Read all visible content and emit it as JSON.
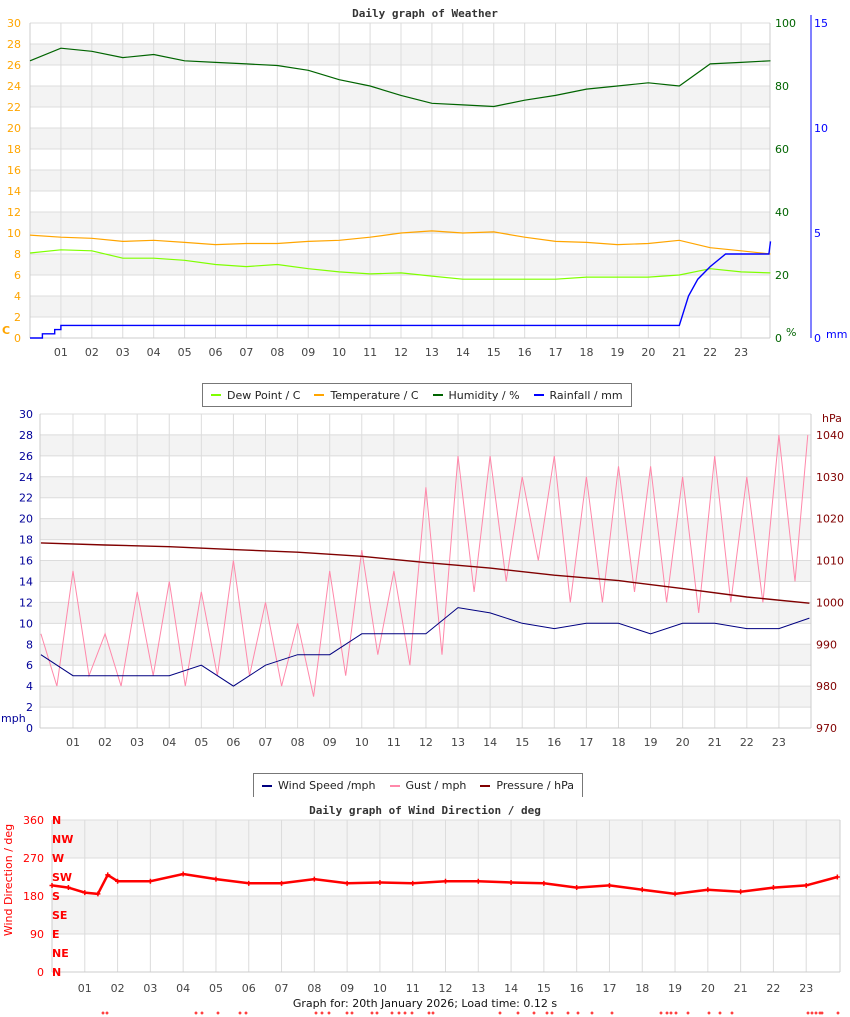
{
  "footer": "Graph for: 20th January 2026; Load time: 0.12 s",
  "chart_data": [
    {
      "type": "line",
      "title": "Daily graph of Weather",
      "x_range_hours": [
        0,
        24
      ],
      "x_ticks": [
        "01",
        "02",
        "03",
        "04",
        "05",
        "06",
        "07",
        "08",
        "09",
        "10",
        "11",
        "12",
        "13",
        "14",
        "15",
        "16",
        "17",
        "18",
        "19",
        "20",
        "21",
        "22",
        "23"
      ],
      "grid": true,
      "legend_placement": "bottom",
      "axes": {
        "left": {
          "unit": "C",
          "range": [
            0,
            30
          ],
          "ticks": [
            "0",
            "2",
            "4",
            "6",
            "8",
            "10",
            "12",
            "14",
            "16",
            "18",
            "20",
            "22",
            "24",
            "26",
            "28",
            "30"
          ],
          "color": "#ffa500"
        },
        "humidity": {
          "unit": "%",
          "range": [
            0,
            100
          ],
          "ticks": [
            "0",
            "20",
            "40",
            "60",
            "80",
            "100"
          ],
          "color": "#006400"
        },
        "rain": {
          "unit": "mm",
          "range": [
            0,
            15
          ],
          "ticks": [
            "0",
            "5",
            "10",
            "15"
          ],
          "color": "#0000ff"
        }
      },
      "series": [
        {
          "name": "Dew Point / C",
          "axis": "left",
          "color": "#7fff00",
          "x": [
            0,
            1,
            2,
            3,
            4,
            5,
            6,
            7,
            8,
            9,
            10,
            11,
            12,
            13,
            14,
            15,
            16,
            17,
            18,
            19,
            20,
            21,
            22,
            23,
            23.95
          ],
          "y": [
            8.1,
            8.4,
            8.3,
            7.6,
            7.6,
            7.4,
            7.0,
            6.8,
            7.0,
            6.6,
            6.3,
            6.1,
            6.2,
            5.9,
            5.6,
            5.6,
            5.6,
            5.6,
            5.8,
            5.8,
            5.8,
            6.0,
            6.6,
            6.3,
            6.2
          ]
        },
        {
          "name": "Temperature / C",
          "axis": "left",
          "color": "#ffa500",
          "x": [
            0,
            1,
            2,
            3,
            4,
            5,
            6,
            7,
            8,
            9,
            10,
            11,
            12,
            13,
            14,
            15,
            16,
            17,
            18,
            19,
            20,
            21,
            22,
            23,
            23.95
          ],
          "y": [
            9.8,
            9.6,
            9.5,
            9.2,
            9.3,
            9.1,
            8.9,
            9.0,
            9.0,
            9.2,
            9.3,
            9.6,
            10.0,
            10.2,
            10.0,
            10.1,
            9.6,
            9.2,
            9.1,
            8.9,
            9.0,
            9.3,
            8.6,
            8.3,
            8.0
          ]
        },
        {
          "name": "Humidity / %",
          "axis": "humidity",
          "color": "#006400",
          "x": [
            0,
            1,
            2,
            3,
            4,
            5,
            6,
            7,
            8,
            9,
            10,
            11,
            12,
            13,
            14,
            15,
            16,
            17,
            18,
            19,
            20,
            21,
            22,
            23,
            23.95
          ],
          "y": [
            88,
            92,
            91,
            89,
            90,
            88,
            87.5,
            87,
            86.5,
            85,
            82,
            80,
            77,
            74.5,
            74,
            73.5,
            75.5,
            77,
            79,
            80,
            81,
            80,
            87,
            87.5,
            88
          ]
        },
        {
          "name": "Rainfall / mm",
          "axis": "rain",
          "color": "#0000ff",
          "x": [
            0,
            0.4,
            0.4,
            0.8,
            0.8,
            1.0,
            1.0,
            21.0,
            21.3,
            21.6,
            22.0,
            22.5,
            23.9,
            23.95
          ],
          "y": [
            0,
            0,
            0.2,
            0.2,
            0.4,
            0.4,
            0.6,
            0.6,
            2.0,
            2.8,
            3.4,
            4.0,
            4.0,
            4.6
          ]
        }
      ]
    },
    {
      "type": "line",
      "title": "",
      "x_range_hours": [
        0,
        24
      ],
      "x_ticks": [
        "01",
        "02",
        "03",
        "04",
        "05",
        "06",
        "07",
        "08",
        "09",
        "10",
        "11",
        "12",
        "13",
        "14",
        "15",
        "16",
        "17",
        "18",
        "19",
        "20",
        "21",
        "22",
        "23"
      ],
      "grid": true,
      "legend_placement": "bottom",
      "axes": {
        "left": {
          "unit": "mph",
          "range": [
            0,
            30
          ],
          "ticks": [
            "0",
            "2",
            "4",
            "6",
            "8",
            "10",
            "12",
            "14",
            "16",
            "18",
            "20",
            "22",
            "24",
            "26",
            "28",
            "30"
          ],
          "color": "#000099"
        },
        "pressure": {
          "unit": "hPa",
          "range": [
            970,
            1045
          ],
          "ticks": [
            "970",
            "980",
            "990",
            "1000",
            "1010",
            "1020",
            "1030",
            "1040"
          ],
          "color": "#800000"
        }
      },
      "series": [
        {
          "name": "Wind Speed /mph",
          "axis": "left",
          "color": "#000080",
          "x": [
            0,
            1,
            2,
            3,
            4,
            5,
            6,
            7,
            8,
            9,
            10,
            11,
            12,
            13,
            14,
            15,
            16,
            17,
            18,
            19,
            20,
            21,
            22,
            23,
            23.95
          ],
          "y": [
            7,
            5,
            5,
            5,
            5,
            6,
            4,
            6,
            7,
            7,
            9,
            9,
            9,
            11.5,
            11,
            10,
            9.5,
            10,
            10,
            9,
            10,
            10,
            9.5,
            9.5,
            10.5
          ]
        },
        {
          "name": "Gust / mph",
          "axis": "left",
          "color": "#ff88aa",
          "x": [
            0,
            0.5,
            1,
            1.5,
            2,
            2.5,
            3,
            3.5,
            4,
            4.5,
            5,
            5.5,
            6,
            6.5,
            7,
            7.5,
            8,
            8.5,
            9,
            9.5,
            10,
            10.5,
            11,
            11.5,
            12,
            12.5,
            13,
            13.5,
            14,
            14.5,
            15,
            15.5,
            16,
            16.5,
            17,
            17.5,
            18,
            18.5,
            19,
            19.5,
            20,
            20.5,
            21,
            21.5,
            22,
            22.5,
            23,
            23.5,
            23.9
          ],
          "y": [
            9,
            4,
            15,
            5,
            9,
            4,
            13,
            5,
            14,
            4,
            13,
            5,
            16,
            5,
            12,
            4,
            10,
            3,
            15,
            5,
            17,
            7,
            15,
            6,
            23,
            7,
            26,
            13,
            26,
            14,
            24,
            16,
            26,
            12,
            24,
            12,
            25,
            13,
            25,
            12,
            24,
            11,
            26,
            12,
            24,
            12,
            28,
            14,
            28
          ]
        },
        {
          "name": "Pressure / hPa",
          "axis": "pressure",
          "color": "#800000",
          "x": [
            0,
            2,
            4,
            6,
            8,
            10,
            12,
            14,
            16,
            18,
            20,
            22,
            23.95
          ],
          "y": [
            1014.2,
            1013.7,
            1013.3,
            1012.6,
            1012,
            1011,
            1009.5,
            1008.2,
            1006.5,
            1005.2,
            1003.3,
            1001.3,
            999.8
          ]
        }
      ]
    },
    {
      "type": "scatter",
      "title": "Daily graph of Wind Direction / deg",
      "x_range_hours": [
        0,
        24
      ],
      "x_ticks": [
        "01",
        "02",
        "03",
        "04",
        "05",
        "06",
        "07",
        "08",
        "09",
        "10",
        "11",
        "12",
        "13",
        "14",
        "15",
        "16",
        "17",
        "18",
        "19",
        "20",
        "21",
        "22",
        "23"
      ],
      "grid": true,
      "axes": {
        "left": {
          "label": "Wind Direction / deg",
          "range": [
            0,
            360
          ],
          "ticks": [
            "0",
            "90",
            "180",
            "270",
            "360"
          ],
          "color": "#ff0000"
        },
        "compass": [
          "N",
          "NE",
          "E",
          "SE",
          "S",
          "SW",
          "W",
          "NW",
          "N"
        ]
      },
      "series": [
        {
          "axis": "left",
          "color": "#ff0000",
          "x": [
            0,
            0.5,
            1,
            1.4,
            1.7,
            2,
            3,
            4,
            5,
            6,
            7,
            8,
            9,
            10,
            11,
            12,
            13,
            14,
            15,
            16,
            17,
            18,
            19,
            20,
            21,
            22,
            23,
            23.95
          ],
          "y": [
            205,
            200,
            188,
            185,
            230,
            215,
            215,
            232,
            220,
            210,
            210,
            220,
            210,
            212,
            210,
            215,
            215,
            212,
            210,
            200,
            205,
            195,
            185,
            195,
            190,
            200,
            205,
            225
          ]
        }
      ]
    }
  ]
}
